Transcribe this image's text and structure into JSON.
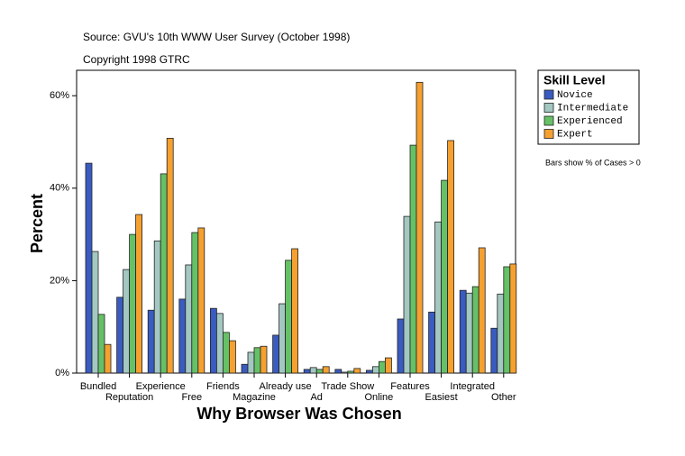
{
  "chart_data": {
    "type": "bar",
    "source": "Source: GVU's 10th WWW User Survey (October 1998)",
    "copyright": "Copyright 1998 GTRC",
    "x_label": "Why Browser Was Chosen",
    "y_label": "Percent",
    "legend_title": "Skill Level",
    "note": "Bars show % of Cases > 0",
    "categories": [
      "Bundled",
      "Reputation",
      "Experience",
      "Free",
      "Friends",
      "Magazine",
      "Already use",
      "Ad",
      "Trade Show",
      "Online",
      "Features",
      "Easiest",
      "Integrated",
      "Other"
    ],
    "series": [
      {
        "name": "Novice",
        "color": "#3a5bbf",
        "values": [
          45.4,
          16.4,
          13.6,
          16.0,
          14.0,
          1.9,
          8.2,
          0.8,
          0.8,
          0.6,
          11.7,
          13.2,
          17.9,
          9.7
        ]
      },
      {
        "name": "Intermediate",
        "color": "#a3c7c1",
        "values": [
          26.3,
          22.4,
          28.6,
          23.4,
          12.9,
          4.5,
          15.0,
          1.2,
          0.2,
          1.4,
          33.9,
          32.7,
          17.3,
          17.1
        ]
      },
      {
        "name": "Experienced",
        "color": "#66c166",
        "values": [
          12.7,
          30.0,
          43.1,
          30.4,
          8.8,
          5.5,
          24.4,
          0.8,
          0.4,
          2.5,
          49.3,
          41.7,
          18.7,
          23.0
        ]
      },
      {
        "name": "Expert",
        "color": "#f5a030",
        "values": [
          6.2,
          34.3,
          50.8,
          31.4,
          7.0,
          5.8,
          26.9,
          1.4,
          1.0,
          3.3,
          62.9,
          50.3,
          27.1,
          23.6
        ]
      }
    ],
    "ylim": [
      0,
      65.5
    ],
    "yticks": [
      {
        "value": 0,
        "label": "0%"
      },
      {
        "value": 20,
        "label": "20%"
      },
      {
        "value": 40,
        "label": "40%"
      },
      {
        "value": 60,
        "label": "60%"
      }
    ]
  }
}
